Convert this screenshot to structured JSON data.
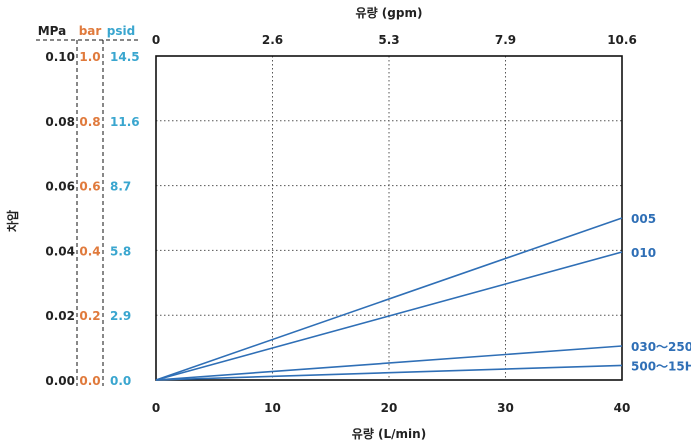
{
  "chart_data": {
    "type": "line",
    "x_bottom": {
      "label": "유량 (L/min)",
      "range": [
        0,
        40
      ],
      "ticks": [
        "0",
        "10",
        "20",
        "30",
        "40"
      ]
    },
    "x_top": {
      "label": "유량 (gpm)",
      "ticks": [
        "0",
        "2.6",
        "5.3",
        "7.9",
        "10.6"
      ]
    },
    "y_label": "차압",
    "y_range_mpa": [
      0,
      0.1
    ],
    "y_axes": [
      {
        "unit": "MPa",
        "color": "#222222",
        "ticks": [
          "0.00",
          "0.02",
          "0.04",
          "0.06",
          "0.08",
          "0.10"
        ]
      },
      {
        "unit": "bar",
        "color": "#e07a3c",
        "ticks": [
          "0.0",
          "0.2",
          "0.4",
          "0.6",
          "0.8",
          "1.0"
        ]
      },
      {
        "unit": "psid",
        "color": "#3aa6cf",
        "ticks": [
          "0.0",
          "2.9",
          "5.8",
          "8.7",
          "11.6",
          "14.5"
        ]
      }
    ],
    "grid": true,
    "series_color": "#2f6fb6",
    "series": [
      {
        "name": "005",
        "points": [
          [
            0,
            0
          ],
          [
            40,
            0.05
          ]
        ]
      },
      {
        "name": "010",
        "points": [
          [
            0,
            0
          ],
          [
            40,
            0.0395
          ]
        ]
      },
      {
        "name": "030～250",
        "points": [
          [
            0,
            0
          ],
          [
            40,
            0.0105
          ]
        ]
      },
      {
        "name": "500～15H",
        "points": [
          [
            0,
            0
          ],
          [
            40,
            0.0045
          ]
        ]
      }
    ]
  }
}
